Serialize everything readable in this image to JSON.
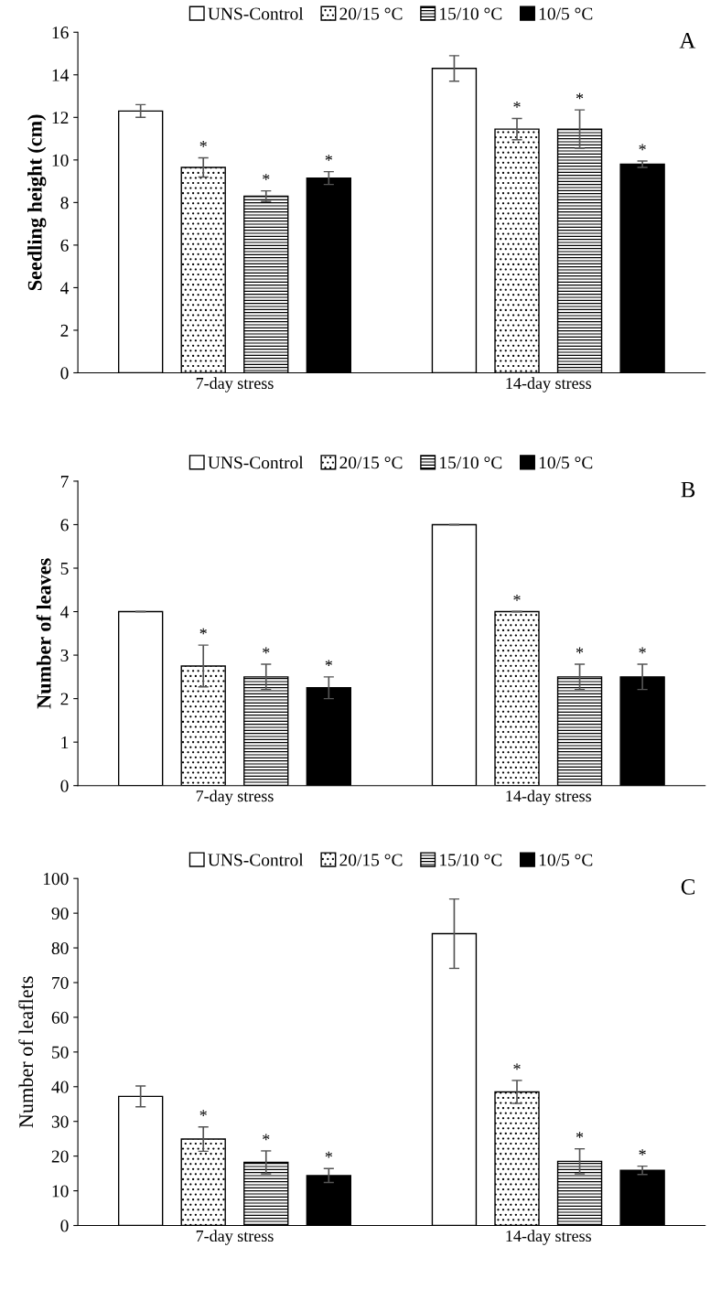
{
  "chart_data": [
    {
      "type": "bar",
      "ylabel": "Seedling height (cm)",
      "categories": [
        "7-day stress",
        "14-day stress"
      ],
      "ylim": [
        0,
        16
      ],
      "yticks": [
        0,
        2,
        4,
        6,
        8,
        10,
        12,
        14,
        16
      ],
      "grid": false,
      "legend": "top",
      "annotations": [
        "A"
      ],
      "series": [
        {
          "name": "UNS-Control",
          "color": "#ffffff",
          "values": [
            12.3,
            14.3
          ],
          "errors": [
            0.3,
            0.6
          ]
        },
        {
          "name": "20/15 °C",
          "color": "#000000",
          "values": [
            9.65,
            11.45
          ],
          "errors": [
            0.45,
            0.5
          ],
          "value_labels": [
            "*",
            "*"
          ]
        },
        {
          "name": "15/10 °C",
          "color": "#000000",
          "values": [
            8.3,
            11.45
          ],
          "errors": [
            0.25,
            0.9
          ],
          "value_labels": [
            "*",
            "*"
          ]
        },
        {
          "name": "10/5 °C",
          "color": "#000000",
          "values": [
            9.15,
            9.8
          ],
          "errors": [
            0.3,
            0.15
          ],
          "value_labels": [
            "*",
            "*"
          ]
        }
      ]
    },
    {
      "type": "bar",
      "ylabel": "Number of leaves",
      "categories": [
        "7-day stress",
        "14-day stress"
      ],
      "ylim": [
        0,
        7
      ],
      "yticks": [
        0,
        1,
        2,
        3,
        4,
        5,
        6,
        7
      ],
      "grid": false,
      "legend": "top",
      "annotations": [
        "B"
      ],
      "series": [
        {
          "name": "UNS-Control",
          "color": "#ffffff",
          "values": [
            4,
            6
          ],
          "errors": [
            0,
            0
          ]
        },
        {
          "name": "20/15 °C",
          "color": "#000000",
          "values": [
            2.75,
            4
          ],
          "errors": [
            0.48,
            0
          ],
          "value_labels": [
            "*",
            "*"
          ]
        },
        {
          "name": "15/10 °C",
          "color": "#000000",
          "values": [
            2.5,
            2.5
          ],
          "errors": [
            0.29,
            0.29
          ],
          "value_labels": [
            "*",
            "*"
          ]
        },
        {
          "name": "10/5 °C",
          "color": "#000000",
          "values": [
            2.25,
            2.5
          ],
          "errors": [
            0.25,
            0.29
          ],
          "value_labels": [
            "*",
            "*"
          ]
        }
      ]
    },
    {
      "type": "bar",
      "ylabel": "Number of leaflets",
      "categories": [
        "7-day stress",
        "14-day stress"
      ],
      "ylim": [
        0,
        100
      ],
      "yticks": [
        0,
        10,
        20,
        30,
        40,
        50,
        60,
        70,
        80,
        90,
        100
      ],
      "grid": false,
      "legend": "top",
      "annotations": [
        "C"
      ],
      "series": [
        {
          "name": "UNS-Control",
          "color": "#ffffff",
          "values": [
            37.2,
            84.1
          ],
          "errors": [
            3,
            10
          ]
        },
        {
          "name": "20/15 °C",
          "color": "#000000",
          "values": [
            24.9,
            38.5
          ],
          "errors": [
            3.5,
            3.3
          ],
          "value_labels": [
            "*",
            "*"
          ]
        },
        {
          "name": "15/10 °C",
          "color": "#000000",
          "values": [
            18.2,
            18.5
          ],
          "errors": [
            3.3,
            3.6
          ],
          "value_labels": [
            "*",
            "*"
          ]
        },
        {
          "name": "10/5 °C",
          "color": "#000000",
          "values": [
            14.4,
            15.9
          ],
          "errors": [
            2,
            1.2
          ],
          "value_labels": [
            "*",
            "*"
          ]
        }
      ]
    }
  ]
}
